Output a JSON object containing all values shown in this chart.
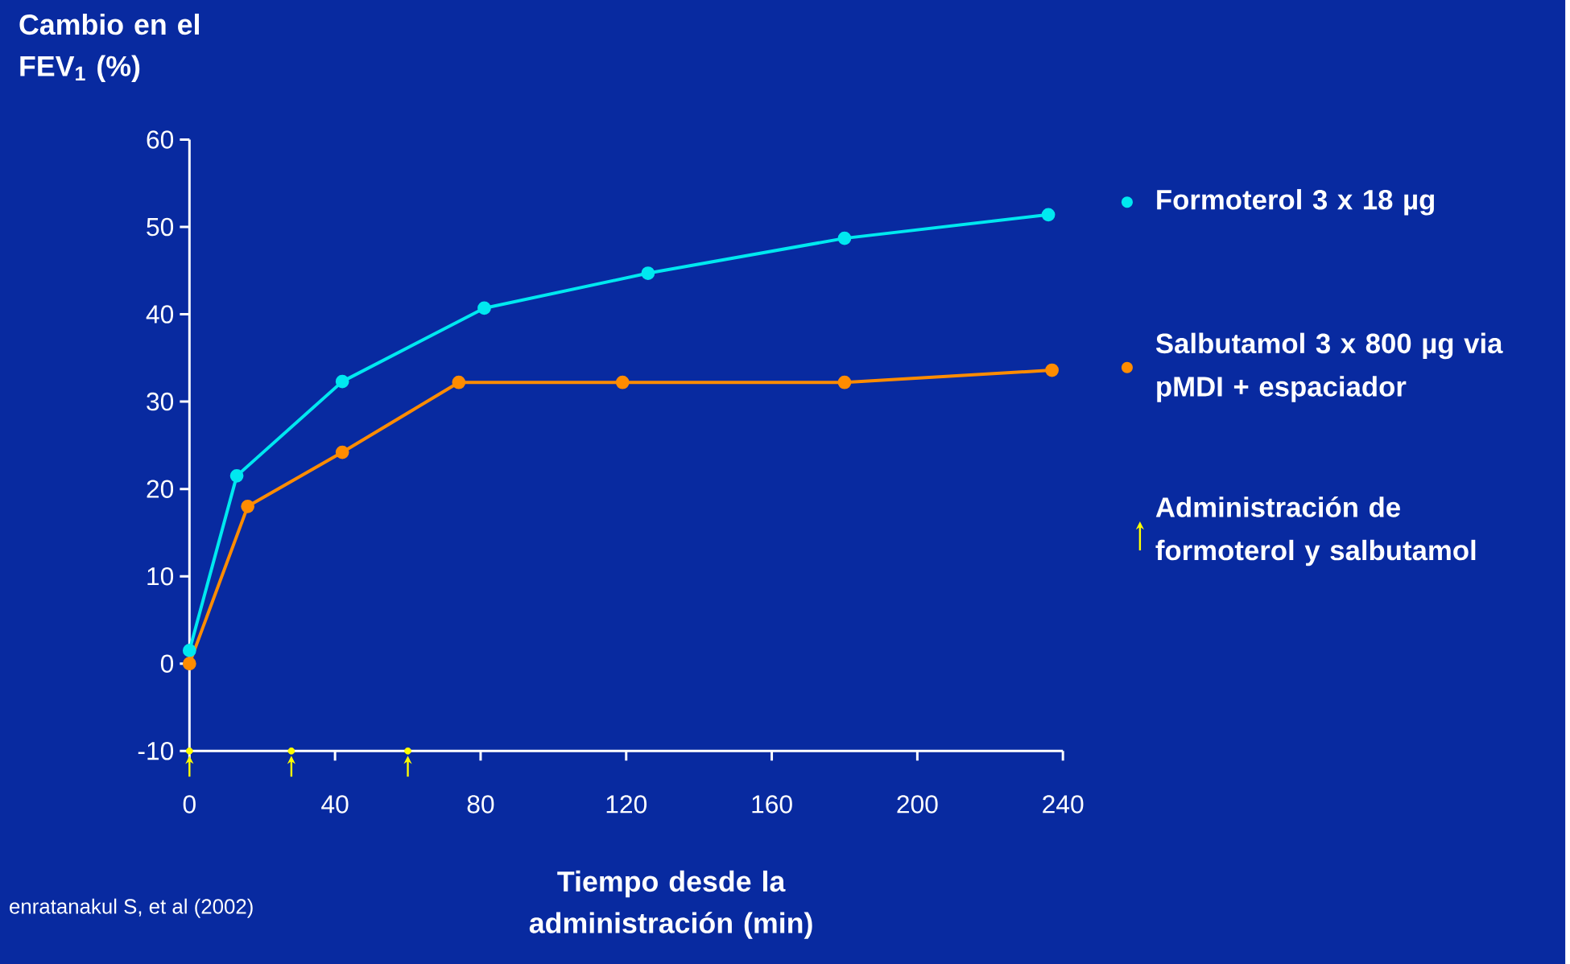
{
  "chart_data": {
    "type": "line",
    "xlabel": "Tiempo desde la administración (min)",
    "ylabel": "Cambio en el FEV$_{1}$ (%)",
    "xlim": [
      0,
      240
    ],
    "xticks": [
      0,
      40,
      80,
      120,
      160,
      200,
      240
    ],
    "ylim": [
      -10,
      60
    ],
    "yticks": [
      -10,
      0,
      10,
      20,
      30,
      40,
      50,
      60
    ],
    "grid": false,
    "legend": "right",
    "marker": "circle",
    "line_style": "solid",
    "series": [
      {
        "name": "Formoterol 3 x 18 µg",
        "color": "#00e8f0",
        "x": [
          0,
          13,
          42,
          81,
          126,
          180,
          236
        ],
        "values": [
          1.5,
          21.5,
          32.3,
          40.7,
          44.7,
          48.7,
          51.4
        ]
      },
      {
        "name": "Salbutamol 3 x 800 µg via pMDI + espaciador",
        "color": "#ff8c00",
        "x": [
          0,
          16,
          42,
          74,
          119,
          180,
          237
        ],
        "values": [
          0,
          18,
          24.2,
          32.2,
          32.2,
          32.2,
          33.6
        ]
      },
      {
        "name": "Administración de formoterol y salbutamol",
        "type": "scatter",
        "color": "#ffff00",
        "x": [
          0,
          28,
          60
        ],
        "values": [
          -10,
          -10,
          -10
        ]
      }
    ],
    "annotations": [
      "enratanakul S, et al (2002)"
    ]
  }
}
